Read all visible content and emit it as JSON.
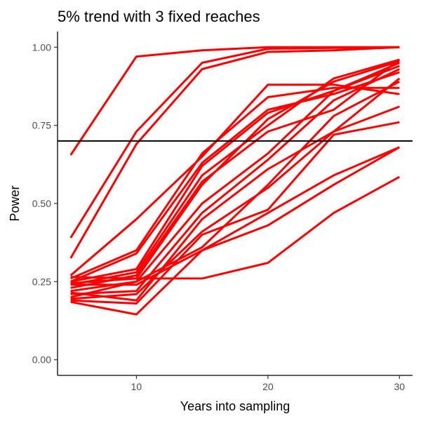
{
  "chart_data": {
    "type": "line",
    "title": "5% trend with 3 fixed reaches",
    "xlabel": "Years into sampling",
    "ylabel": "Power",
    "x": [
      5,
      10,
      15,
      20,
      25,
      30
    ],
    "xlim": [
      4,
      31
    ],
    "ylim": [
      -0.05,
      1.05
    ],
    "xticks": [
      10,
      20,
      30
    ],
    "xtick_labels": [
      "10",
      "20",
      "30"
    ],
    "yticks": [
      0,
      0.25,
      0.5,
      0.75,
      1
    ],
    "ytick_labels": [
      "0.00",
      "0.25",
      "0.50",
      "0.75",
      "1.00"
    ],
    "grid": false,
    "legend": "none",
    "line_color": "#ff0000",
    "reference_line": {
      "orientation": "horizontal",
      "y": 0.7,
      "color": "#000000"
    },
    "series": [
      {
        "values": [
          0.655,
          0.97,
          0.99,
          1.0,
          1.0,
          1.0
        ]
      },
      {
        "values": [
          0.39,
          0.73,
          0.95,
          0.995,
          0.998,
          1.0
        ]
      },
      {
        "values": [
          0.325,
          0.69,
          0.93,
          0.985,
          0.99,
          1.0
        ]
      },
      {
        "values": [
          0.27,
          0.45,
          0.65,
          0.88,
          0.88,
          0.85
        ]
      },
      {
        "values": [
          0.26,
          0.35,
          0.66,
          0.84,
          0.87,
          0.87
        ]
      },
      {
        "values": [
          0.25,
          0.34,
          0.63,
          0.8,
          0.85,
          0.92
        ]
      },
      {
        "values": [
          0.25,
          0.29,
          0.62,
          0.79,
          0.86,
          0.94
        ]
      },
      {
        "values": [
          0.245,
          0.26,
          0.56,
          0.77,
          0.89,
          0.955
        ]
      },
      {
        "values": [
          0.24,
          0.28,
          0.59,
          0.75,
          0.9,
          0.96
        ]
      },
      {
        "values": [
          0.23,
          0.27,
          0.57,
          0.73,
          0.8,
          0.96
        ]
      },
      {
        "values": [
          0.22,
          0.25,
          0.5,
          0.66,
          0.86,
          0.95
        ]
      },
      {
        "values": [
          0.21,
          0.22,
          0.47,
          0.64,
          0.83,
          0.93
        ]
      },
      {
        "values": [
          0.215,
          0.19,
          0.45,
          0.61,
          0.73,
          0.9
        ]
      },
      {
        "values": [
          0.2,
          0.25,
          0.36,
          0.56,
          0.78,
          0.89
        ]
      },
      {
        "values": [
          0.195,
          0.21,
          0.41,
          0.55,
          0.73,
          0.81
        ]
      },
      {
        "values": [
          0.19,
          0.18,
          0.4,
          0.48,
          0.72,
          0.76
        ]
      },
      {
        "values": [
          0.185,
          0.145,
          0.35,
          0.47,
          0.59,
          0.68
        ]
      },
      {
        "values": [
          0.265,
          0.26,
          0.26,
          0.31,
          0.47,
          0.585
        ]
      },
      {
        "values": [
          0.24,
          0.24,
          0.35,
          0.43,
          0.56,
          0.68
        ]
      }
    ]
  }
}
